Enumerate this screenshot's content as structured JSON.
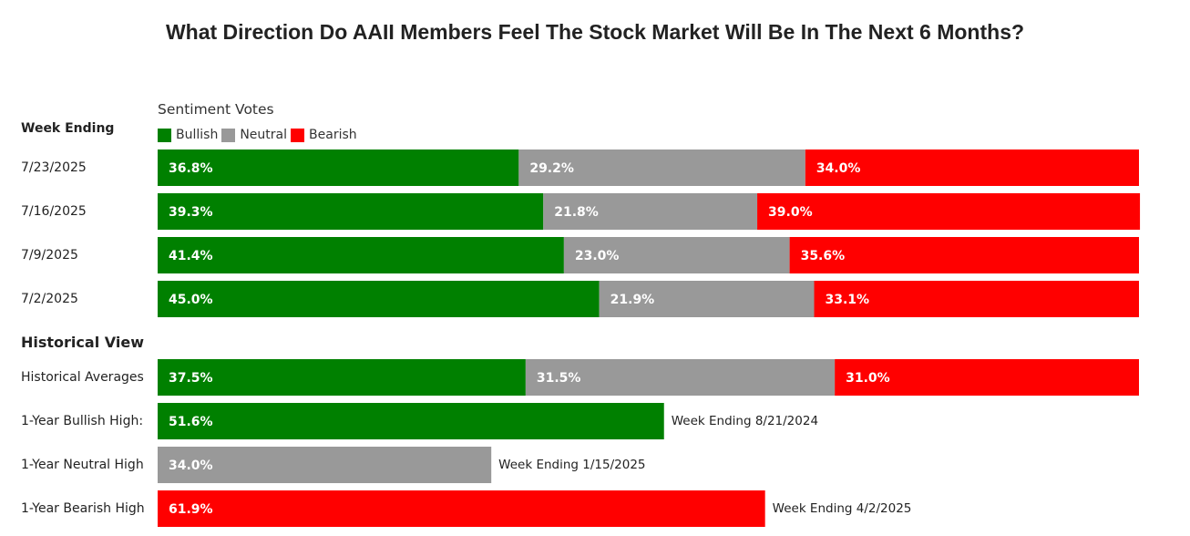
{
  "chart_data": {
    "type": "bar",
    "stacked": true,
    "orientation": "horizontal",
    "title": "What Direction Do AAII Members Feel The Stock Market Will Be In The Next 6 Months?",
    "subtitle": "Sentiment Votes",
    "xlim": [
      0,
      100
    ],
    "legend": {
      "position": "top-left",
      "entries": [
        "Bullish",
        "Neutral",
        "Bearish"
      ]
    },
    "colors": {
      "Bullish": "#008000",
      "Neutral": "#999999",
      "Bearish": "#ff0000"
    },
    "sections": [
      {
        "heading": "Week Ending",
        "categories": [
          "7/23/2025",
          "7/16/2025",
          "7/9/2025",
          "7/2/2025"
        ],
        "series": [
          {
            "name": "Bullish",
            "values": [
              36.8,
              39.3,
              41.4,
              45.0
            ],
            "labels": [
              "36.8%",
              "39.3%",
              "41.4%",
              "45.0%"
            ]
          },
          {
            "name": "Neutral",
            "values": [
              29.2,
              21.8,
              23.0,
              21.9
            ],
            "labels": [
              "29.2%",
              "21.8%",
              "23.0%",
              "21.9%"
            ]
          },
          {
            "name": "Bearish",
            "values": [
              34.0,
              39.0,
              35.6,
              33.1
            ],
            "labels": [
              "34.0%",
              "39.0%",
              "35.6%",
              "33.1%"
            ]
          }
        ]
      },
      {
        "heading": "Historical View",
        "rows": [
          {
            "category": "Historical Averages",
            "segments": [
              {
                "series": "Bullish",
                "value": 37.5,
                "label": "37.5%"
              },
              {
                "series": "Neutral",
                "value": 31.5,
                "label": "31.5%"
              },
              {
                "series": "Bearish",
                "value": 31.0,
                "label": "31.0%"
              }
            ]
          },
          {
            "category": "1-Year Bullish High:",
            "segments": [
              {
                "series": "Bullish",
                "value": 51.6,
                "label": "51.6%"
              }
            ],
            "note": "Week Ending 8/21/2024"
          },
          {
            "category": "1-Year Neutral High",
            "segments": [
              {
                "series": "Neutral",
                "value": 34.0,
                "label": "34.0%"
              }
            ],
            "note": "Week Ending 1/15/2025"
          },
          {
            "category": "1-Year Bearish High",
            "segments": [
              {
                "series": "Bearish",
                "value": 61.9,
                "label": "61.9%"
              }
            ],
            "note": "Week Ending 4/2/2025"
          }
        ]
      }
    ]
  }
}
